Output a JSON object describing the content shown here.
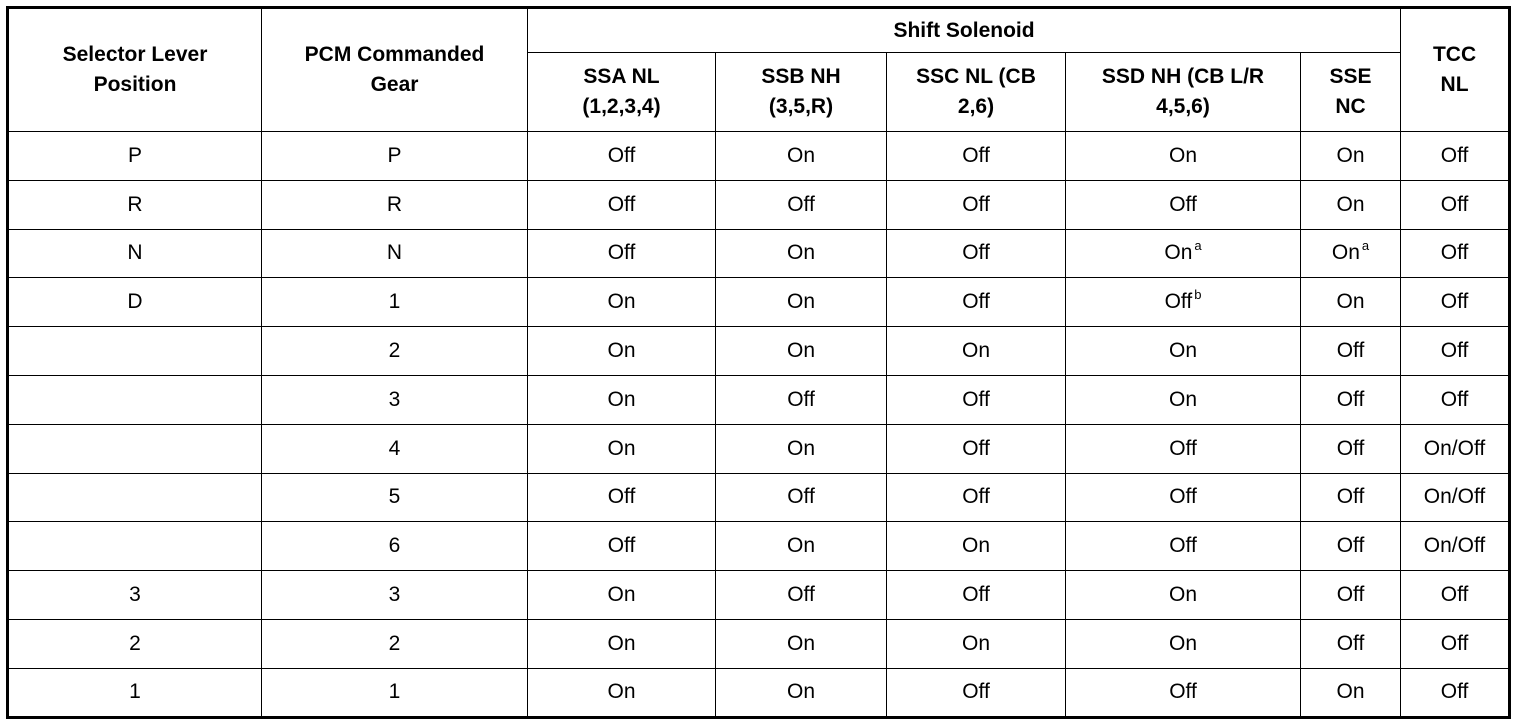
{
  "headers": {
    "selector": "Selector Lever Position",
    "pcm": "PCM Commanded Gear",
    "group": "Shift Solenoid",
    "ssa": "SSA NL (1,2,3,4)",
    "ssb": "SSB NH (3,5,R)",
    "ssc": "SSC NL (CB 2,6)",
    "ssd": "SSD NH (CB L/R 4,5,6)",
    "sse": "SSE NC",
    "tcc": "TCC NL"
  },
  "rows": [
    {
      "cells": [
        {
          "t": "P"
        },
        {
          "t": "P"
        },
        {
          "t": "Off"
        },
        {
          "t": "On"
        },
        {
          "t": "Off"
        },
        {
          "t": "On"
        },
        {
          "t": "On"
        },
        {
          "t": "Off"
        }
      ]
    },
    {
      "cells": [
        {
          "t": "R"
        },
        {
          "t": "R"
        },
        {
          "t": "Off"
        },
        {
          "t": "Off"
        },
        {
          "t": "Off"
        },
        {
          "t": "Off"
        },
        {
          "t": "On"
        },
        {
          "t": "Off"
        }
      ]
    },
    {
      "cells": [
        {
          "t": "N"
        },
        {
          "t": "N"
        },
        {
          "t": "Off"
        },
        {
          "t": "On"
        },
        {
          "t": "Off"
        },
        {
          "t": "On",
          "s": "a"
        },
        {
          "t": "On",
          "s": "a"
        },
        {
          "t": "Off"
        }
      ]
    },
    {
      "cells": [
        {
          "t": "D"
        },
        {
          "t": "1"
        },
        {
          "t": "On"
        },
        {
          "t": "On"
        },
        {
          "t": "Off"
        },
        {
          "t": "Off",
          "s": "b"
        },
        {
          "t": "On"
        },
        {
          "t": "Off"
        }
      ]
    },
    {
      "cells": [
        {
          "t": ""
        },
        {
          "t": "2"
        },
        {
          "t": "On"
        },
        {
          "t": "On"
        },
        {
          "t": "On"
        },
        {
          "t": "On"
        },
        {
          "t": "Off"
        },
        {
          "t": "Off"
        }
      ]
    },
    {
      "cells": [
        {
          "t": ""
        },
        {
          "t": "3"
        },
        {
          "t": "On"
        },
        {
          "t": "Off"
        },
        {
          "t": "Off"
        },
        {
          "t": "On"
        },
        {
          "t": "Off"
        },
        {
          "t": "Off"
        }
      ]
    },
    {
      "cells": [
        {
          "t": ""
        },
        {
          "t": "4"
        },
        {
          "t": "On"
        },
        {
          "t": "On"
        },
        {
          "t": "Off"
        },
        {
          "t": "Off"
        },
        {
          "t": "Off"
        },
        {
          "t": "On/Off"
        }
      ]
    },
    {
      "cells": [
        {
          "t": ""
        },
        {
          "t": "5"
        },
        {
          "t": "Off"
        },
        {
          "t": "Off"
        },
        {
          "t": "Off"
        },
        {
          "t": "Off"
        },
        {
          "t": "Off"
        },
        {
          "t": "On/Off"
        }
      ]
    },
    {
      "cells": [
        {
          "t": ""
        },
        {
          "t": "6"
        },
        {
          "t": "Off"
        },
        {
          "t": "On"
        },
        {
          "t": "On"
        },
        {
          "t": "Off"
        },
        {
          "t": "Off"
        },
        {
          "t": "On/Off"
        }
      ]
    },
    {
      "cells": [
        {
          "t": "3"
        },
        {
          "t": "3"
        },
        {
          "t": "On"
        },
        {
          "t": "Off"
        },
        {
          "t": "Off"
        },
        {
          "t": "On"
        },
        {
          "t": "Off"
        },
        {
          "t": "Off"
        }
      ]
    },
    {
      "cells": [
        {
          "t": "2"
        },
        {
          "t": "2"
        },
        {
          "t": "On"
        },
        {
          "t": "On"
        },
        {
          "t": "On"
        },
        {
          "t": "On"
        },
        {
          "t": "Off"
        },
        {
          "t": "Off"
        }
      ]
    },
    {
      "cells": [
        {
          "t": "1"
        },
        {
          "t": "1"
        },
        {
          "t": "On"
        },
        {
          "t": "On"
        },
        {
          "t": "Off"
        },
        {
          "t": "Off"
        },
        {
          "t": "On"
        },
        {
          "t": "Off"
        }
      ]
    }
  ]
}
